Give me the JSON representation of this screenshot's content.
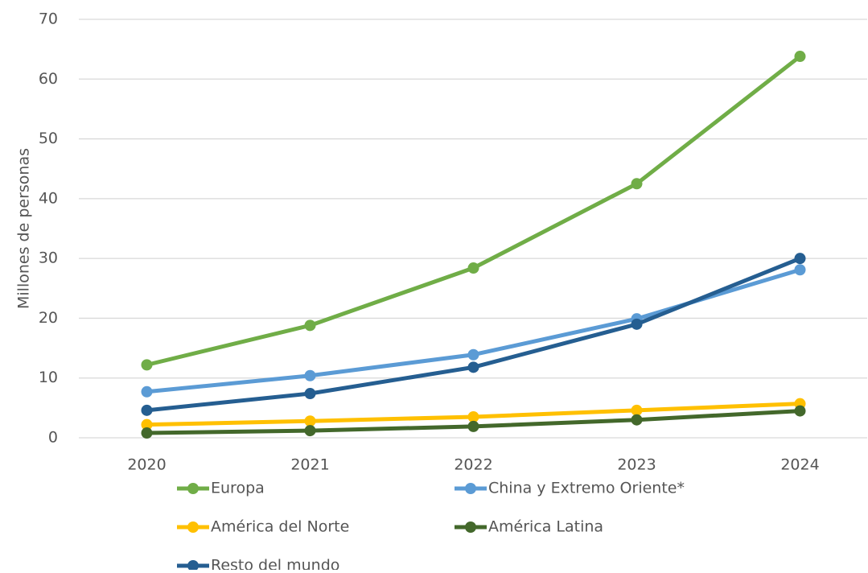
{
  "chart_data": {
    "type": "line",
    "y_label": "Millones de personas",
    "categories": [
      "2020",
      "2021",
      "2022",
      "2023",
      "2024"
    ],
    "series": [
      {
        "name": "Europa",
        "color": "#70ad47",
        "values": [
          12.2,
          18.8,
          28.4,
          42.5,
          63.8
        ]
      },
      {
        "name": "China y Extremo Oriente*",
        "color": "#5b9bd5",
        "values": [
          7.7,
          10.4,
          13.9,
          19.9,
          28.1
        ]
      },
      {
        "name": "América del Norte",
        "color": "#ffc000",
        "values": [
          2.2,
          2.8,
          3.5,
          4.6,
          5.7
        ]
      },
      {
        "name": "América Latina",
        "color": "#43682b",
        "values": [
          0.8,
          1.2,
          1.9,
          3.0,
          4.5
        ]
      },
      {
        "name": "Resto del mundo",
        "color": "#255e91",
        "values": [
          4.6,
          7.4,
          11.8,
          19.0,
          30.0
        ]
      }
    ],
    "ylim": [
      0,
      70
    ],
    "yticks": [
      0,
      10,
      20,
      30,
      40,
      50,
      60,
      70
    ],
    "grid": true
  }
}
